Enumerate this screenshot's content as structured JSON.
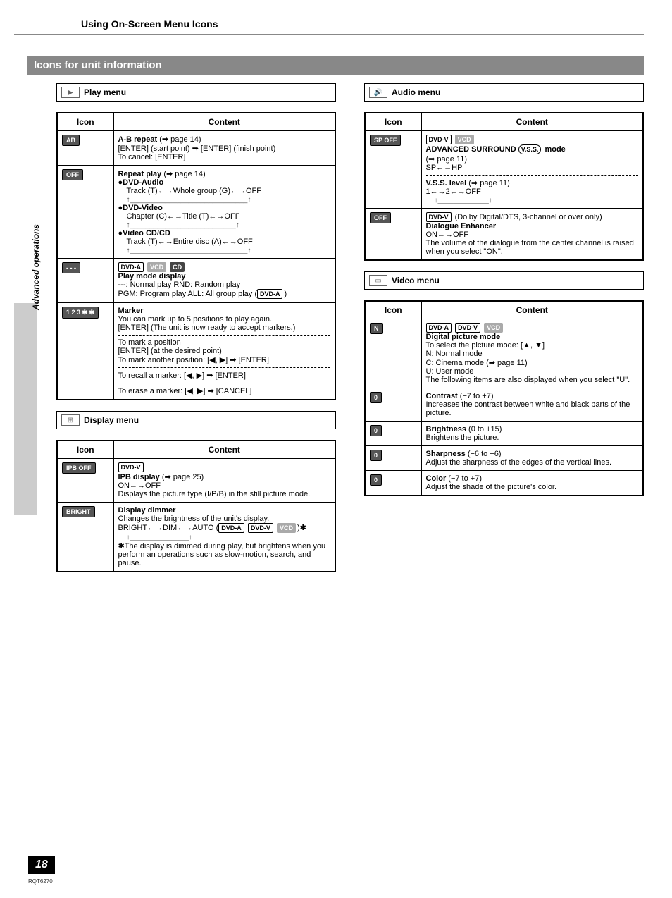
{
  "page": {
    "header": "Using On-Screen Menu Icons",
    "section_bar": "Icons for unit information",
    "sidebar": "Advanced operations",
    "page_number": "18",
    "page_code": "RQT6270"
  },
  "table_headers": {
    "icon": "Icon",
    "content": "Content"
  },
  "badges": {
    "dvd_a": "DVD-A",
    "dvd_v": "DVD-V",
    "vcd": "VCD",
    "cd": "CD",
    "vss": "V.S.S."
  },
  "play_menu": {
    "title": "Play menu",
    "rows": {
      "ab": {
        "icon": "AB",
        "title": "A-B repeat",
        "ref": "(➡ page 14)",
        "line1": "[ENTER] (start point) ➡ [ENTER] (finish point)",
        "line2": "To cancel:  [ENTER]"
      },
      "repeat": {
        "icon": "OFF",
        "title": "Repeat play",
        "ref": "(➡ page 14)",
        "g1_label": "●DVD-Audio",
        "g1_line": "Track (T)←→Whole group (G)←→OFF",
        "g2_label": "●DVD-Video",
        "g2_line": "Chapter (C)←→Title (T)←→OFF",
        "g3_label": "●Video CD/CD",
        "g3_line": "Track (T)←→Entire disc (A)←→OFF"
      },
      "playmode": {
        "icon": "- - -",
        "title": "Play mode display",
        "line1": "---:    Normal play    RND: Random play",
        "line2_a": "PGM: Program play  ALL:  All group play (",
        "line2_b": ")"
      },
      "marker": {
        "icon": "1 2 3 ✱ ✱",
        "title": "Marker",
        "p1": "You can mark up to 5 positions to play again.",
        "p2": "[ENTER] (The unit is now ready to accept markers.)",
        "p3a": "To mark a position",
        "p3b": "[ENTER] (at the desired point)",
        "p3c": "To mark another position:  [◀, ▶] ➡ [ENTER]",
        "p4": "To recall a marker:  [◀, ▶] ➡ [ENTER]",
        "p5": "To erase a marker:  [◀, ▶] ➡ [CANCEL]"
      }
    }
  },
  "display_menu": {
    "title": "Display menu",
    "rows": {
      "ipb": {
        "icon": "IPB OFF",
        "title": "IPB display",
        "ref": "(➡ page 25)",
        "line1": "ON←→OFF",
        "line2": "Displays the picture type (I/P/B) in the still picture mode."
      },
      "dimmer": {
        "icon": "BRIGHT",
        "title": "Display dimmer",
        "line1": "Changes the brightness of the unit's display.",
        "line2a": "BRIGHT←→DIM←→AUTO (",
        "line2b": ")✱",
        "note": "✱The display is dimmed during play, but brightens when you perform an operations such as slow-motion, search, and pause."
      }
    }
  },
  "audio_menu": {
    "title": "Audio menu",
    "rows": {
      "vss": {
        "icon": "SP OFF",
        "title": "ADVANCED SURROUND",
        "mode_suffix": " mode",
        "ref": "(➡ page 11)",
        "line1": "SP←→HP",
        "sub_title": "V.S.S. level",
        "sub_ref": "(➡ page 11)",
        "line2": "1←→2←→OFF"
      },
      "dialogue": {
        "icon": "OFF",
        "pre": " (Dolby Digital/DTS, 3-channel or over only)",
        "title": "Dialogue Enhancer",
        "line1": "ON←→OFF",
        "line2": "The volume of the dialogue from the center channel is raised when you select \"ON\"."
      }
    }
  },
  "video_menu": {
    "title": "Video menu",
    "rows": {
      "dpm": {
        "icon": "N",
        "title": "Digital picture mode",
        "line1": "To select the picture mode:  [▲, ▼]",
        "line2": "N:  Normal mode",
        "line3a": "C:  Cinema mode (",
        "line3b": "➡ page 11)",
        "line4": "U:  User mode",
        "line5": "The following items are also displayed when you select \"U\"."
      },
      "contrast": {
        "icon": "0",
        "title": "Contrast",
        "range": "(−7 to +7)",
        "desc": "Increases the contrast between white and black parts of the picture."
      },
      "brightness": {
        "icon": "0",
        "title": "Brightness",
        "range": "(0 to +15)",
        "desc": "Brightens the picture."
      },
      "sharpness": {
        "icon": "0",
        "title": "Sharpness",
        "range": "(−6 to +6)",
        "desc": "Adjust the sharpness of the edges of the vertical lines."
      },
      "color": {
        "icon": "0",
        "title": "Color",
        "range": "(−7 to +7)",
        "desc": "Adjust the shade of the picture's color."
      }
    }
  }
}
